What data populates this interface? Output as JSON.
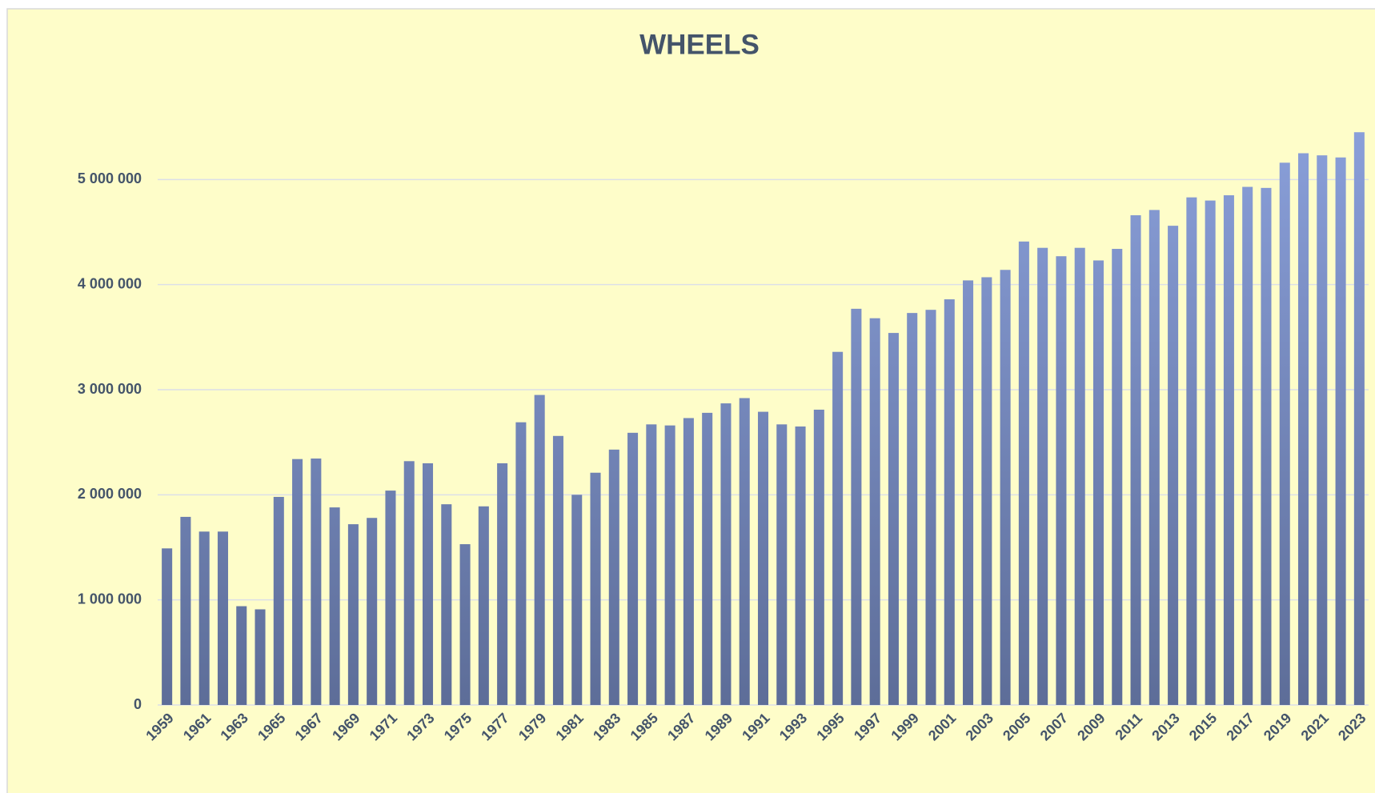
{
  "chart_data": {
    "type": "bar",
    "title": "WHEELS",
    "categories": [
      "1959",
      null,
      "1961",
      null,
      "1963",
      null,
      "1965",
      null,
      "1967",
      null,
      "1969",
      null,
      "1971",
      null,
      "1973",
      null,
      "1975",
      null,
      "1977",
      null,
      "1979",
      null,
      "1981",
      null,
      "1983",
      null,
      "1985",
      null,
      "1987",
      null,
      "1989",
      null,
      "1991",
      null,
      "1993",
      null,
      "1995",
      null,
      "1997",
      null,
      "1999",
      null,
      "2001",
      null,
      "2003",
      null,
      "2005",
      null,
      "2007",
      null,
      "2009",
      null,
      "2011",
      null,
      "2013",
      null,
      "2015",
      null,
      "2017",
      null,
      "2019",
      null,
      "2021",
      null,
      "2023"
    ],
    "values": [
      1490000,
      1790000,
      1650000,
      1650000,
      940000,
      910000,
      1980000,
      2340000,
      2345000,
      1880000,
      1720000,
      1780000,
      2040000,
      2320000,
      2300000,
      1910000,
      1530000,
      1890000,
      2300000,
      2690000,
      2950000,
      2560000,
      2000000,
      2210000,
      2430000,
      2590000,
      2670000,
      2660000,
      2730000,
      2780000,
      2870000,
      2920000,
      2790000,
      2670000,
      2650000,
      2810000,
      3360000,
      3770000,
      3680000,
      3540000,
      3730000,
      3760000,
      3860000,
      4040000,
      4070000,
      4140000,
      4410000,
      4350000,
      4270000,
      4350000,
      4230000,
      4340000,
      4660000,
      4710000,
      4560000,
      4830000,
      4800000,
      4850000,
      4930000,
      4920000,
      5160000,
      5250000,
      5230000,
      5210000,
      5450000
    ],
    "color": "#8ea4e0",
    "ylim": [
      0,
      6000000
    ],
    "yticks": [
      0,
      {
        "value": 1000000,
        "label": "1 000 000"
      },
      {
        "value": 2000000,
        "label": "2 000 000"
      },
      {
        "value": 3000000,
        "label": "3 000 000"
      },
      {
        "value": 4000000,
        "label": "4 000 000"
      },
      {
        "value": 5000000,
        "label": "5 000 000"
      }
    ],
    "grid": true
  }
}
